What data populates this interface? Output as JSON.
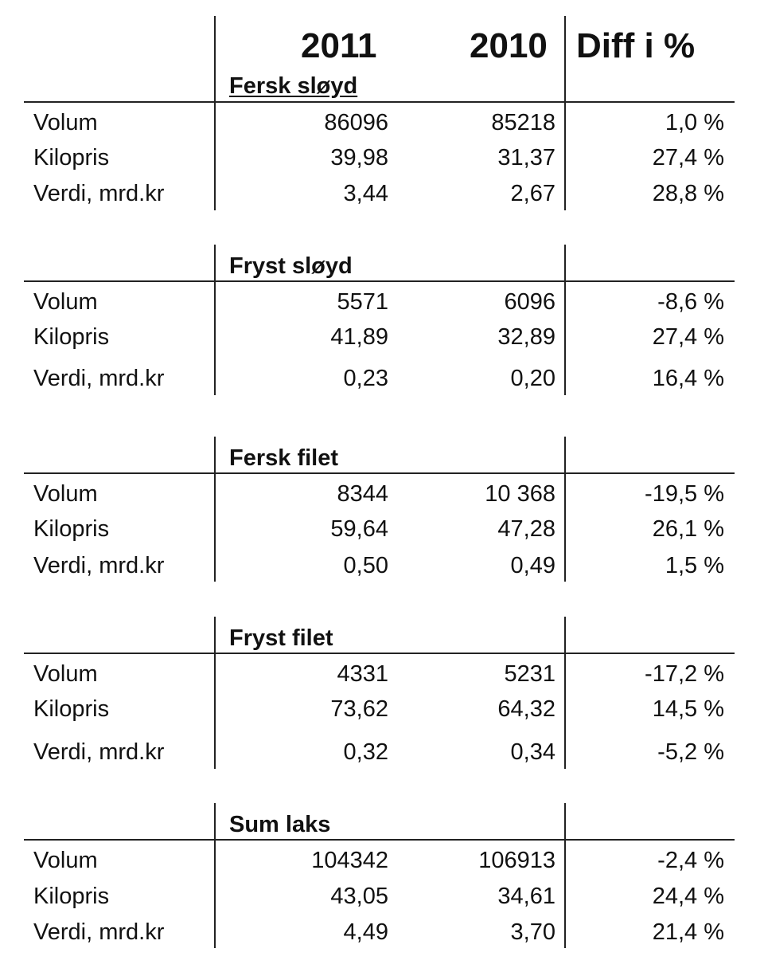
{
  "header": {
    "col_2011": "2011",
    "col_2010": "2010",
    "col_diff": "Diff i %"
  },
  "sections": [
    {
      "title": "Fersk sløyd",
      "rows": [
        {
          "label": "Volum",
          "v2011": "86096",
          "v2010": "85218",
          "diff": "1,0 %"
        },
        {
          "label": "Kilopris",
          "v2011": "39,98",
          "v2010": "31,37",
          "diff": "27,4 %"
        },
        {
          "label": "Verdi, mrd.kr",
          "v2011": "3,44",
          "v2010": "2,67",
          "diff": "28,8 %"
        }
      ]
    },
    {
      "title": "Fryst sløyd",
      "rows": [
        {
          "label": "Volum",
          "v2011": "5571",
          "v2010": "6096",
          "diff": "-8,6 %"
        },
        {
          "label": "Kilopris",
          "v2011": "41,89",
          "v2010": "32,89",
          "diff": "27,4 %"
        },
        {
          "label": "Verdi, mrd.kr",
          "v2011": "0,23",
          "v2010": "0,20",
          "diff": "16,4 %"
        }
      ]
    },
    {
      "title": "Fersk filet",
      "rows": [
        {
          "label": "Volum",
          "v2011": "8344",
          "v2010": "10 368",
          "diff": "-19,5 %"
        },
        {
          "label": "Kilopris",
          "v2011": "59,64",
          "v2010": "47,28",
          "diff": "26,1 %"
        },
        {
          "label": "Verdi, mrd.kr",
          "v2011": "0,50",
          "v2010": "0,49",
          "diff": "1,5 %"
        }
      ]
    },
    {
      "title": "Fryst filet",
      "rows": [
        {
          "label": "Volum",
          "v2011": "4331",
          "v2010": "5231",
          "diff": "-17,2 %"
        },
        {
          "label": "Kilopris",
          "v2011": "73,62",
          "v2010": "64,32",
          "diff": "14,5 %"
        },
        {
          "label": "Verdi, mrd.kr",
          "v2011": "0,32",
          "v2010": "0,34",
          "diff": "-5,2 %"
        }
      ]
    },
    {
      "title": "Sum laks",
      "rows": [
        {
          "label": "Volum",
          "v2011": "104342",
          "v2010": "106913",
          "diff": "-2,4 %"
        },
        {
          "label": "Kilopris",
          "v2011": "43,05",
          "v2010": "34,61",
          "diff": "24,4 %"
        },
        {
          "label": "Verdi, mrd.kr",
          "v2011": "4,49",
          "v2010": "3,70",
          "diff": "21,4 %"
        }
      ]
    }
  ]
}
